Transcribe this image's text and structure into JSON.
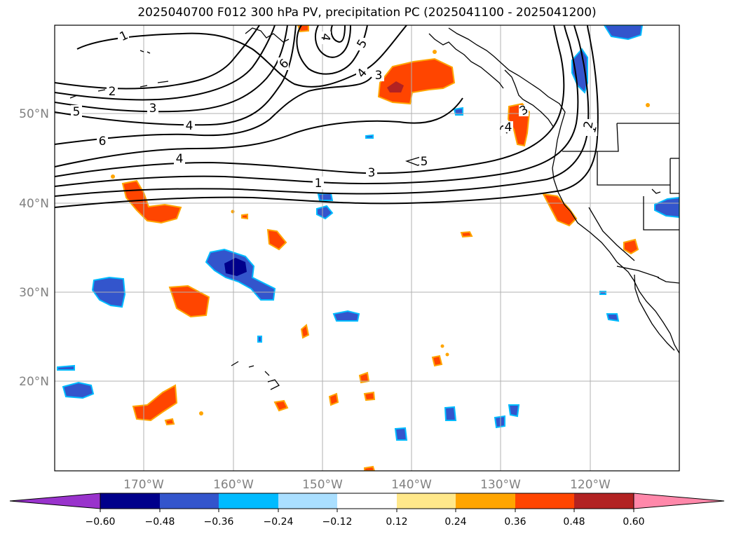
{
  "title": "2025040700 F012 300 hPa PV, precipitation PC (2025041100 - 2025041200)",
  "map": {
    "lon_labels": [
      "170°W",
      "160°W",
      "150°W",
      "140°W",
      "130°W",
      "120°W"
    ],
    "lat_labels": [
      "50°N",
      "40°N",
      "30°N",
      "20°N"
    ],
    "gridlines": true,
    "contour_labels": [
      "1",
      "2",
      "3",
      "4",
      "5",
      "6",
      "1",
      "2",
      "3",
      "4",
      "5",
      "6",
      "1",
      "3",
      "4",
      "4",
      "5",
      "4",
      "3",
      "2"
    ],
    "coastline_color": "#000000"
  },
  "colorbar": {
    "ticks": [
      "−0.60",
      "−0.48",
      "−0.36",
      "−0.24",
      "−0.12",
      "0.12",
      "0.24",
      "0.36",
      "0.48",
      "0.60"
    ],
    "colors": [
      "#9933cc",
      "#00008b",
      "#3355cc",
      "#00bbff",
      "#aadfff",
      "#ffffff",
      "#ffe88a",
      "#ffa500",
      "#ff4500",
      "#b22222",
      "#ff88aa"
    ]
  }
}
